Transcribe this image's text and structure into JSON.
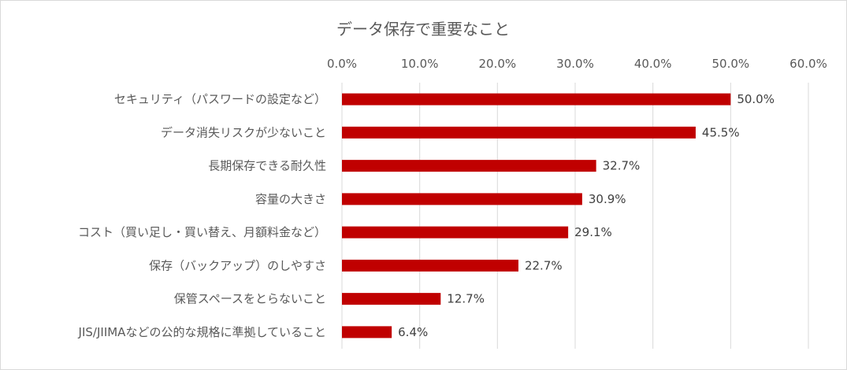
{
  "chart_data": {
    "type": "bar",
    "orientation": "horizontal",
    "title": "データ保存で重要なこと",
    "xlabel": "",
    "ylabel": "",
    "xlim": [
      0,
      60
    ],
    "x_ticks": [
      "0.0%",
      "10.0%",
      "20.0%",
      "30.0%",
      "40.0%",
      "50.0%",
      "60.0%"
    ],
    "x_axis_position": "top",
    "grid": true,
    "legend": "none",
    "bar_color": "#c00000",
    "categories": [
      "セキュリティ（パスワードの設定など）",
      "データ消失リスクが少ないこと",
      "長期保存できる耐久性",
      "容量の大きさ",
      "コスト（買い足し・買い替え、月額料金など）",
      "保存（バックアップ）のしやすさ",
      "保管スペースをとらないこと",
      "JIS/JIIMAなどの公的な規格に準拠していること"
    ],
    "values": [
      50.0,
      45.5,
      32.7,
      30.9,
      29.1,
      22.7,
      12.7,
      6.4
    ],
    "data_labels": [
      "50.0%",
      "45.5%",
      "32.7%",
      "30.9%",
      "29.1%",
      "22.7%",
      "12.7%",
      "6.4%"
    ]
  }
}
